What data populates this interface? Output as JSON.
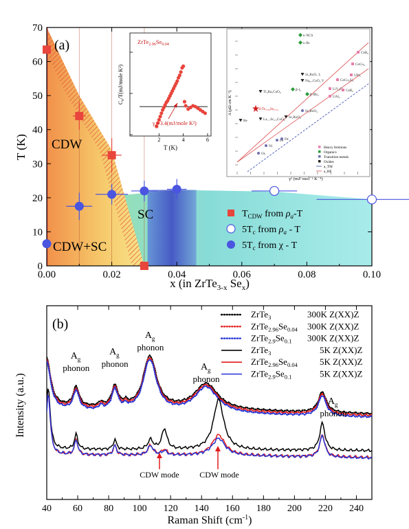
{
  "colors": {
    "cdw_region": "#f2a34a",
    "cdw_edge": "#e0504a",
    "sc_region": "#8fe3e3",
    "sc_dark": "#3c40c8",
    "marker_red": "#e8453c",
    "marker_blue": "#4a55e0",
    "spec_black": "#000000",
    "spec_red": "#e21b1b",
    "spec_blue": "#2432d4"
  },
  "panel_a": {
    "label": "(a)",
    "xlabel_pre": "x (in ZrTe",
    "xlabel_sub1": "3-x",
    "xlabel_mid": " Se",
    "xlabel_sub2": "x",
    "xlabel_post": ")",
    "ylabel": "T (K)",
    "regions": {
      "cdw": "CDW",
      "sc": "SC",
      "cdw_sc": "CDW+SC"
    },
    "legend": [
      {
        "pre": "T",
        "sub": "CDW",
        "post": " from ",
        "rho": "ρ",
        "rsub": "a",
        "tail": "-T"
      },
      {
        "pre": "5T",
        "sub": "c",
        "post": " from ",
        "rho": "ρ",
        "rsub": "a",
        "tail": " - T"
      },
      {
        "pre": "5T",
        "sub": "c",
        "post": " from χ - T",
        "rho": "",
        "rsub": "",
        "tail": ""
      }
    ],
    "inset_left": {
      "title_pre": "ZrTe",
      "title_sub1": "2.96",
      "title_mid": "Se",
      "title_sub2": "0.04",
      "ylabel": "C",
      "ylabel_sub": "e",
      "ylabel_post": "/T(mJ/mole K²)",
      "xlabel": "T (K)",
      "annotation": "γ",
      "annotation_sub": "e",
      "annotation_post": "=3.4(mJ/mole K²)",
      "xticks": [
        "2",
        "4",
        "6"
      ],
      "yticks": [
        "0",
        "5",
        "10"
      ]
    },
    "inset_right": {
      "ylabel": "A (μΩ cm K⁻²)",
      "xlabel": "γ² (mJ² mol⁻² K⁻⁴)",
      "point_labels": [
        "κ-NCS",
        "κ-Br",
        "CeB₆",
        "CeCu₆",
        "CeCu₂Si₂",
        "LiV₂O₄",
        "CeB₆",
        "UPt₃",
        "UAl₂",
        "Sr₃RuO₇ L",
        "Na₀.₇CoO₂ V",
        "β-I₃",
        "β-IBr₂",
        "Sr₂RuO₄",
        "Tl₂Ba₂CuO₆",
        "ZrTe₂.₉₆Se₀.₀₄",
        "La₁.₇Sr₀.₃CuO₄",
        "Fe",
        "Pd",
        "Ni",
        "Os",
        "Re",
        "Sr₂RuO₄"
      ],
      "legend": [
        "Heavy fermions",
        "Organics",
        "Transition metals",
        "Oxides",
        "a_TM",
        "a_HF"
      ]
    }
  },
  "panel_b": {
    "label": "(b)",
    "xlabel": "Raman Shift (cm",
    "xlabel_sup": "-1",
    "xlabel_post": ")",
    "ylabel": "Intensity (a.u.)",
    "peak_labels": [
      "A",
      "A",
      "A",
      "A",
      "A"
    ],
    "peak_sub": "g",
    "peak_word": "phonon",
    "cdw_mode": "CDW mode",
    "legend": [
      {
        "pre": "ZrTe",
        "sub1": "3",
        "mid": "",
        "sub2": "",
        "cond": "300K Z(XX)Z"
      },
      {
        "pre": "ZrTe",
        "sub1": "2.96",
        "mid": "Se",
        "sub2": "0.04",
        "cond": "300K Z(XX)Z"
      },
      {
        "pre": "ZrTe",
        "sub1": "2.9",
        "mid": "Se",
        "sub2": "0.1",
        "cond": "300K Z(XX)Z"
      },
      {
        "pre": "ZrTe",
        "sub1": "3",
        "mid": "",
        "sub2": "",
        "cond": "5K Z(XX)Z"
      },
      {
        "pre": "ZrTe",
        "sub1": "2.96",
        "mid": "Se",
        "sub2": "0.04",
        "cond": "5K Z(XX)Z"
      },
      {
        "pre": "ZrTe",
        "sub1": "2.9",
        "mid": "Se",
        "sub2": "0.1",
        "cond": "5K Z(XX)Z"
      }
    ]
  },
  "chart_data": [
    {
      "type": "scatter",
      "panel": "(a)",
      "xlabel": "x (in ZrTe3-xSex)",
      "ylabel": "T (K)",
      "xlim": [
        0.0,
        0.1
      ],
      "ylim": [
        0,
        70
      ],
      "xticks": [
        "0.00",
        "0.02",
        "0.04",
        "0.06",
        "0.08",
        "0.10"
      ],
      "yticks": [
        "0",
        "10",
        "20",
        "30",
        "40",
        "50",
        "60",
        "70"
      ],
      "series": [
        {
          "name": "TCDW from ρa-T",
          "marker": "filled-square",
          "color": "#e8453c",
          "points": [
            {
              "x": 0.0,
              "y": 63.5,
              "xerr": 0,
              "yerr": 0
            },
            {
              "x": 0.01,
              "y": 44,
              "xerr": 0.002,
              "yerr": 4
            },
            {
              "x": 0.02,
              "y": 32.5,
              "xerr": 0.003,
              "yerr": 5
            },
            {
              "x": 0.03,
              "y": 0,
              "xerr": 0,
              "yerr": 0
            }
          ]
        },
        {
          "name": "5Tc from ρa - T",
          "marker": "open-circle",
          "color": "#4a55e0",
          "points": [
            {
              "x": 0.07,
              "y": 22,
              "xerr": 0.007,
              "yerr": 0
            },
            {
              "x": 0.1,
              "y": 19.5,
              "xerr": 0.017,
              "yerr": 0
            }
          ]
        },
        {
          "name": "5Tc from χ - T",
          "marker": "filled-circle",
          "color": "#4a55e0",
          "points": [
            {
              "x": 0.0,
              "y": 6.5,
              "xerr": 0,
              "yerr": 0
            },
            {
              "x": 0.01,
              "y": 17.5,
              "xerr": 0.004,
              "yerr": 4
            },
            {
              "x": 0.02,
              "y": 21,
              "xerr": 0.005,
              "yerr": 3
            },
            {
              "x": 0.03,
              "y": 22,
              "xerr": 0.004,
              "yerr": 3
            },
            {
              "x": 0.04,
              "y": 22.5,
              "xerr": 0.003,
              "yerr": 3
            }
          ]
        }
      ],
      "cdw_boundary": [
        {
          "x": 0.0,
          "y": 70
        },
        {
          "x": 0.01,
          "y": 50
        },
        {
          "x": 0.02,
          "y": 34
        },
        {
          "x": 0.03,
          "y": 0
        }
      ],
      "sc_boundary": [
        {
          "x": 0.0,
          "y": 5
        },
        {
          "x": 0.01,
          "y": 16
        },
        {
          "x": 0.02,
          "y": 20.5
        },
        {
          "x": 0.04,
          "y": 22.3
        },
        {
          "x": 0.07,
          "y": 21.8
        },
        {
          "x": 0.1,
          "y": 19.5
        }
      ]
    },
    {
      "type": "scatter",
      "panel": "(a) inset left",
      "title": "ZrTe2.96Se0.04",
      "xlabel": "T (K)",
      "ylabel": "Ce/T(mJ/mole K²)",
      "xlim": [
        0,
        6
      ],
      "ylim": [
        0,
        12
      ],
      "series": [
        {
          "name": "",
          "color": "#e8453c",
          "points": [
            {
              "x": 1.8,
              "y": 1.0
            },
            {
              "x": 1.9,
              "y": 1.4
            },
            {
              "x": 2.0,
              "y": 1.8
            },
            {
              "x": 2.1,
              "y": 2.2
            },
            {
              "x": 2.2,
              "y": 2.6
            },
            {
              "x": 2.3,
              "y": 3.0
            },
            {
              "x": 2.4,
              "y": 3.3
            },
            {
              "x": 2.5,
              "y": 3.6
            },
            {
              "x": 2.6,
              "y": 3.9
            },
            {
              "x": 2.7,
              "y": 4.1
            },
            {
              "x": 2.8,
              "y": 4.4
            },
            {
              "x": 2.9,
              "y": 4.7
            },
            {
              "x": 3.0,
              "y": 5.0
            },
            {
              "x": 3.1,
              "y": 5.3
            },
            {
              "x": 3.2,
              "y": 5.6
            },
            {
              "x": 3.3,
              "y": 5.9
            },
            {
              "x": 3.4,
              "y": 6.2
            },
            {
              "x": 3.5,
              "y": 6.5
            },
            {
              "x": 3.6,
              "y": 6.9
            },
            {
              "x": 3.7,
              "y": 7.2
            },
            {
              "x": 3.8,
              "y": 7.6
            },
            {
              "x": 3.9,
              "y": 8.1
            },
            {
              "x": 4.0,
              "y": 8.3
            },
            {
              "x": 4.1,
              "y": 4.0
            },
            {
              "x": 4.2,
              "y": 3.5
            },
            {
              "x": 4.4,
              "y": 3.1
            },
            {
              "x": 4.6,
              "y": 3.3
            },
            {
              "x": 4.8,
              "y": 3.5
            },
            {
              "x": 5.0,
              "y": 3.4
            },
            {
              "x": 5.2,
              "y": 3.2
            },
            {
              "x": 5.4,
              "y": 3.0
            },
            {
              "x": 5.6,
              "y": 2.8
            },
            {
              "x": 5.8,
              "y": 2.6
            }
          ]
        }
      ],
      "reference_line_y": 3.4
    },
    {
      "type": "line",
      "panel": "(b)",
      "xlabel": "Raman Shift (cm-1)",
      "ylabel": "Intensity (a.u.)",
      "xlim": [
        40,
        250
      ],
      "xticks": [
        "40",
        "60",
        "80",
        "100",
        "120",
        "140",
        "160",
        "180",
        "200",
        "220",
        "240"
      ],
      "phonon_peaks_cm": [
        59,
        84,
        107,
        143,
        218
      ],
      "cdw_modes_cm": [
        116,
        151
      ],
      "series": [
        {
          "name": "ZrTe3 300K Z(XX)Z",
          "color": "#000000",
          "style": "dotted",
          "group": "300K"
        },
        {
          "name": "ZrTe2.96Se0.04 300K Z(XX)Z",
          "color": "#e21b1b",
          "style": "dotted",
          "group": "300K"
        },
        {
          "name": "ZrTe2.9Se0.1 300K Z(XX)Z",
          "color": "#2432d4",
          "style": "dotted",
          "group": "300K"
        },
        {
          "name": "ZrTe3 5K Z(XX)Z",
          "color": "#000000",
          "style": "solid",
          "group": "5K"
        },
        {
          "name": "ZrTe2.96Se0.04 5K Z(XX)Z",
          "color": "#e21b1b",
          "style": "solid",
          "group": "5K"
        },
        {
          "name": "ZrTe2.9Se0.1 5K Z(XX)Z",
          "color": "#2432d4",
          "style": "solid",
          "group": "5K"
        }
      ]
    }
  ]
}
